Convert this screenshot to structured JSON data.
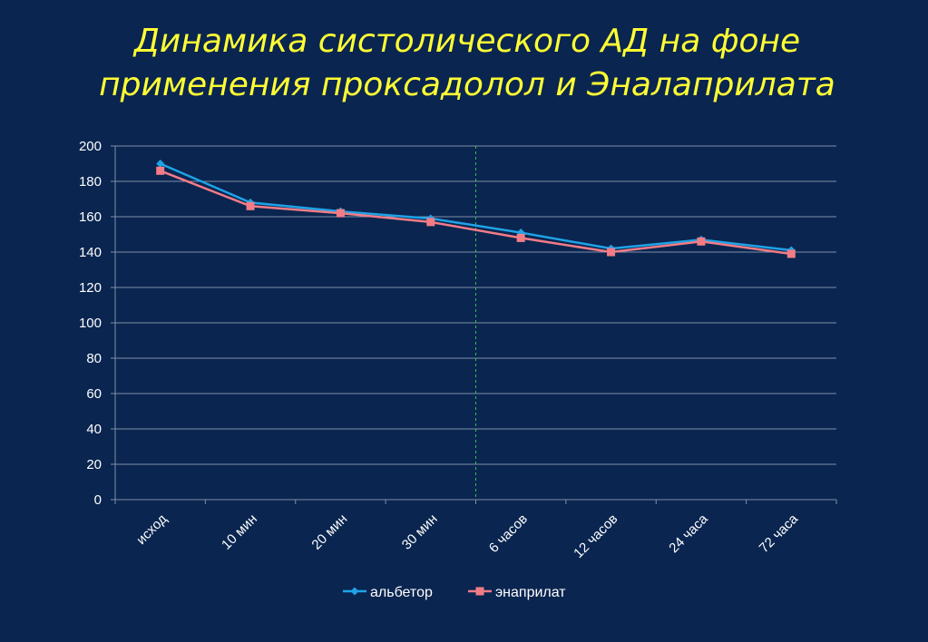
{
  "slide": {
    "title_line1": "Динамика систолического АД на фоне",
    "title_line2": "применения проксадолол и Эналаприлата"
  },
  "chart_data": {
    "type": "line",
    "title": "Динамика систолического АД на фоне применения проксадолол и Эналаприлата",
    "categories": [
      "исход",
      "10 мин",
      "20 мин",
      "30 мин",
      "6 часов",
      "12 часов",
      "24 часа",
      "72 часа"
    ],
    "series": [
      {
        "name": "альбетор",
        "values": [
          190,
          168,
          163,
          159,
          151,
          142,
          147,
          141
        ],
        "color": "#1fa3e6",
        "marker": "diamond"
      },
      {
        "name": "энаприлат",
        "values": [
          186,
          166,
          162,
          157,
          148,
          140,
          146,
          139
        ],
        "color": "#f27c86",
        "marker": "square"
      }
    ],
    "ylim": [
      0,
      200
    ],
    "yticks": [
      0,
      20,
      40,
      60,
      80,
      100,
      120,
      140,
      160,
      180,
      200
    ],
    "grid": true,
    "reference_line": {
      "after_category": "30 мин",
      "color": "#2ec44a",
      "style": "dashed"
    },
    "legend_position": "bottom",
    "xlabel": "",
    "ylabel": ""
  }
}
